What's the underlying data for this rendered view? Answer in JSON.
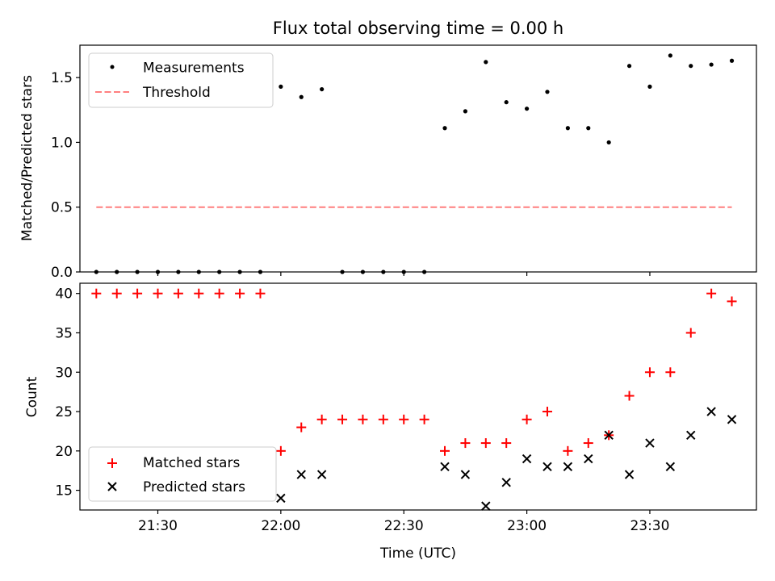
{
  "chart_data": [
    {
      "type": "scatter",
      "title": "Flux total observing time = 0.00 h",
      "xlabel": "",
      "ylabel": "Matched/Predicted stars",
      "xlim": [
        "21:11",
        "23:56"
      ],
      "ylim": [
        0,
        1.75
      ],
      "yticks": [
        0.0,
        0.5,
        1.0,
        1.5
      ],
      "ytick_labels": [
        "0.0",
        "0.5",
        "1.0",
        "1.5"
      ],
      "grid": false,
      "legend": "upper-left",
      "series": [
        {
          "name": "Measurements",
          "marker": "dot",
          "color": "#000000",
          "x": [
            "21:15",
            "21:20",
            "21:25",
            "21:30",
            "21:35",
            "21:40",
            "21:45",
            "21:50",
            "21:55",
            "22:00",
            "22:05",
            "22:10",
            "22:15",
            "22:20",
            "22:25",
            "22:30",
            "22:35",
            "22:40",
            "22:45",
            "22:50",
            "22:55",
            "23:00",
            "23:05",
            "23:10",
            "23:15",
            "23:20",
            "23:25",
            "23:30",
            "23:35",
            "23:40",
            "23:45",
            "23:50"
          ],
          "y": [
            0,
            0,
            0,
            0,
            0,
            0,
            0,
            0,
            0,
            1.43,
            1.35,
            1.41,
            0,
            0,
            0,
            0,
            0,
            1.11,
            1.24,
            1.62,
            1.31,
            1.26,
            1.39,
            1.11,
            1.11,
            1.0,
            1.59,
            1.43,
            1.67,
            1.59,
            1.6,
            1.63
          ]
        },
        {
          "name": "Threshold",
          "marker": "dashed-line",
          "color": "#ff7f7f",
          "x": [
            "21:15",
            "23:50"
          ],
          "y": [
            0.5,
            0.5
          ]
        }
      ]
    },
    {
      "type": "scatter",
      "title": "",
      "xlabel": "Time (UTC)",
      "ylabel": "Count",
      "xlim": [
        "21:11",
        "23:56"
      ],
      "ylim": [
        12.5,
        41.3
      ],
      "yticks": [
        15,
        20,
        25,
        30,
        35,
        40
      ],
      "xticks": [
        "21:30",
        "22:00",
        "22:30",
        "23:00",
        "23:30"
      ],
      "grid": false,
      "legend": "lower-left",
      "series": [
        {
          "name": "Matched stars",
          "marker": "plus",
          "color": "#ff0000",
          "x": [
            "21:15",
            "21:20",
            "21:25",
            "21:30",
            "21:35",
            "21:40",
            "21:45",
            "21:50",
            "21:55",
            "22:00",
            "22:05",
            "22:10",
            "22:15",
            "22:20",
            "22:25",
            "22:30",
            "22:35",
            "22:40",
            "22:45",
            "22:50",
            "22:55",
            "23:00",
            "23:05",
            "23:10",
            "23:15",
            "23:20",
            "23:25",
            "23:30",
            "23:35",
            "23:40",
            "23:45",
            "23:50"
          ],
          "y": [
            40,
            40,
            40,
            40,
            40,
            40,
            40,
            40,
            40,
            20,
            23,
            24,
            24,
            24,
            24,
            24,
            24,
            20,
            21,
            21,
            21,
            24,
            25,
            20,
            21,
            22,
            27,
            30,
            30,
            35,
            40,
            39
          ]
        },
        {
          "name": "Predicted stars",
          "marker": "x",
          "color": "#000000",
          "x": [
            "22:00",
            "22:05",
            "22:10",
            "22:40",
            "22:45",
            "22:50",
            "22:55",
            "23:00",
            "23:05",
            "23:10",
            "23:15",
            "23:20",
            "23:25",
            "23:30",
            "23:35",
            "23:40",
            "23:45",
            "23:50"
          ],
          "y": [
            14,
            17,
            17,
            18,
            17,
            13,
            16,
            19,
            18,
            18,
            19,
            22,
            17,
            21,
            18,
            22,
            25,
            24
          ]
        }
      ]
    }
  ]
}
